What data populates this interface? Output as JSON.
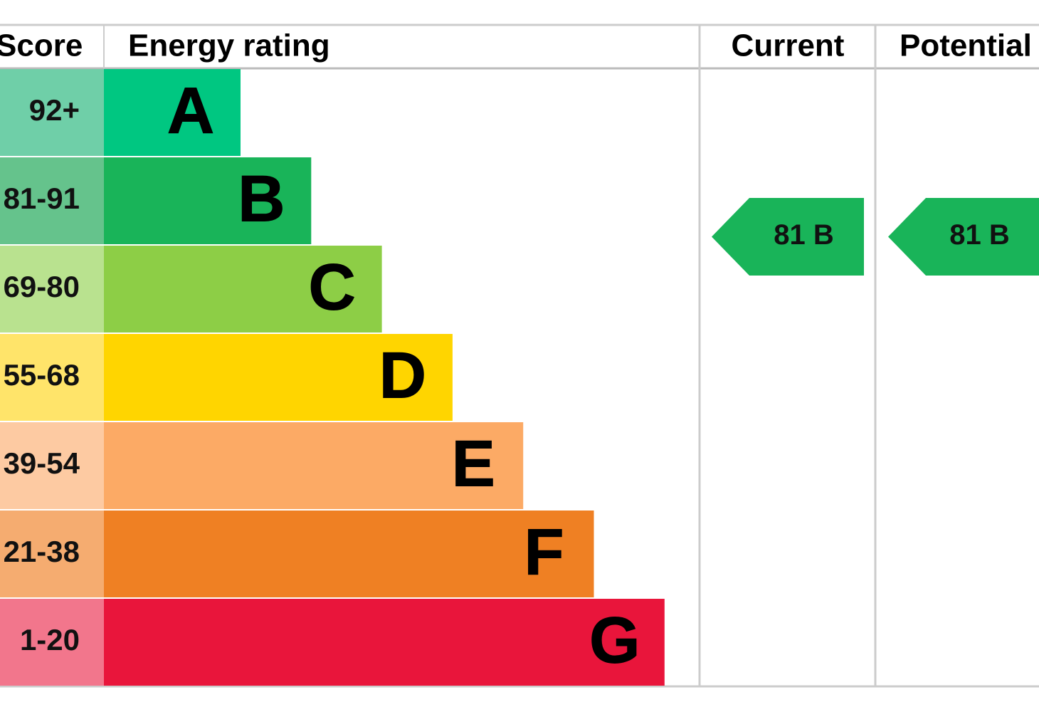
{
  "header": {
    "score": "Score",
    "rating": "Energy rating",
    "current": "Current",
    "potential": "Potential"
  },
  "rows": [
    {
      "score": "92+",
      "letter": "A",
      "color": "#00c781",
      "score_color": "#6fcfa8"
    },
    {
      "score": "81-91",
      "letter": "B",
      "color": "#19b459",
      "score_color": "#65c38c"
    },
    {
      "score": "69-80",
      "letter": "C",
      "color": "#8dce46",
      "score_color": "#b9e28f"
    },
    {
      "score": "55-68",
      "letter": "D",
      "color": "#ffd500",
      "score_color": "#ffe46a"
    },
    {
      "score": "39-54",
      "letter": "E",
      "color": "#fcaa65",
      "score_color": "#fdcaa2"
    },
    {
      "score": "21-38",
      "letter": "F",
      "color": "#ef8023",
      "score_color": "#f5ac70"
    },
    {
      "score": "1-20",
      "letter": "G",
      "color": "#e9153b",
      "score_color": "#f2768c"
    }
  ],
  "current": {
    "label": "81 B",
    "color": "#19b459"
  },
  "potential": {
    "label": "81 B",
    "color": "#19b459"
  }
}
